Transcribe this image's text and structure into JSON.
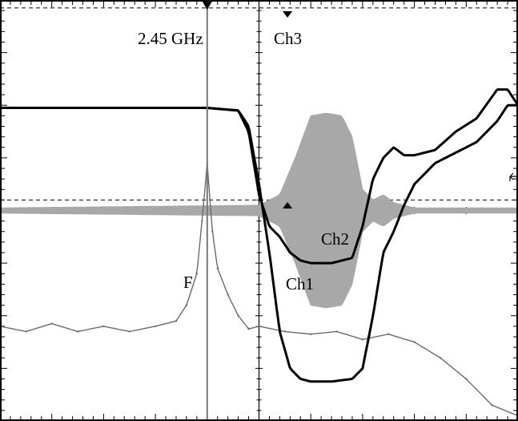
{
  "chart_data": {
    "type": "line",
    "title": "",
    "xlabel": "",
    "ylabel": "",
    "grid": true,
    "xlim": [
      0,
      10
    ],
    "ylim": [
      -4,
      4
    ],
    "annotations": [
      {
        "name": "frequency-label",
        "text": "2.45 GHz"
      },
      {
        "name": "ch3-label",
        "text": "Ch3"
      },
      {
        "name": "ch2-label",
        "text": "Ch2"
      },
      {
        "name": "ch1-label",
        "text": "Ch1"
      },
      {
        "name": "fft-label",
        "text": "F"
      }
    ],
    "cursor_x": 4.0,
    "reference_levels": [
      3.85,
      0.2
    ],
    "series": [
      {
        "name": "Ch1",
        "color": "#000000",
        "x": [
          0,
          1,
          2,
          3,
          4,
          4.6,
          4.8,
          5.0,
          5.2,
          5.4,
          5.6,
          5.8,
          6.0,
          6.4,
          6.8,
          7.0,
          7.2,
          7.4,
          7.6,
          7.8,
          8.0,
          8.4,
          8.8,
          9.2,
          9.6,
          9.8,
          10
        ],
        "values": [
          1.95,
          1.95,
          1.95,
          1.95,
          1.95,
          1.9,
          1.6,
          0.5,
          -0.8,
          -2.3,
          -3.0,
          -3.2,
          -3.25,
          -3.25,
          -3.2,
          -3.0,
          -2.0,
          -0.8,
          -0.4,
          0.1,
          0.5,
          0.9,
          1.1,
          1.3,
          1.7,
          2.0,
          2.0
        ]
      },
      {
        "name": "Ch2",
        "color": "#000000",
        "x": [
          0,
          1,
          2,
          3,
          4,
          4.6,
          4.8,
          5.0,
          5.2,
          5.4,
          5.6,
          5.8,
          6.0,
          6.4,
          6.8,
          7.0,
          7.2,
          7.4,
          7.6,
          7.8,
          8.0,
          8.4,
          8.8,
          9.2,
          9.6,
          9.8,
          10
        ],
        "values": [
          1.95,
          1.95,
          1.95,
          1.95,
          1.95,
          1.9,
          1.5,
          0.3,
          -0.3,
          -0.5,
          -0.8,
          -0.95,
          -1.0,
          -1.0,
          -0.9,
          -0.3,
          0.6,
          1.0,
          1.2,
          1.05,
          1.05,
          1.15,
          1.5,
          1.75,
          2.3,
          2.3,
          2.0
        ]
      },
      {
        "name": "Ch3",
        "color": "#a8a8a8",
        "envelope": true,
        "x": [
          0,
          5.0,
          5.4,
          5.7,
          6.0,
          6.3,
          6.6,
          6.8,
          7.0,
          7.2,
          7.4,
          7.6,
          7.8,
          8.0,
          10
        ],
        "values": [
          0.05,
          0.1,
          0.3,
          1.0,
          1.8,
          1.85,
          1.8,
          1.4,
          0.4,
          0.2,
          0.3,
          0.15,
          0.1,
          0.05,
          0.05
        ]
      },
      {
        "name": "F",
        "color": "#6a6a6a",
        "x": [
          0,
          0.5,
          1.0,
          1.5,
          2.0,
          2.5,
          3.0,
          3.4,
          3.6,
          3.8,
          3.9,
          4.0,
          4.1,
          4.2,
          4.4,
          4.6,
          4.8,
          5.0,
          5.5,
          6.0,
          6.5,
          7.0,
          7.5,
          8.0,
          8.5,
          9.0,
          9.5,
          10
        ],
        "values": [
          -2.2,
          -2.3,
          -2.15,
          -2.3,
          -2.2,
          -2.3,
          -2.2,
          -2.1,
          -1.8,
          -1.2,
          -0.2,
          0.9,
          -0.4,
          -1.1,
          -1.6,
          -2.0,
          -2.25,
          -2.2,
          -2.3,
          -2.35,
          -2.3,
          -2.45,
          -2.35,
          -2.5,
          -2.8,
          -3.2,
          -3.7,
          -3.9
        ]
      }
    ]
  }
}
